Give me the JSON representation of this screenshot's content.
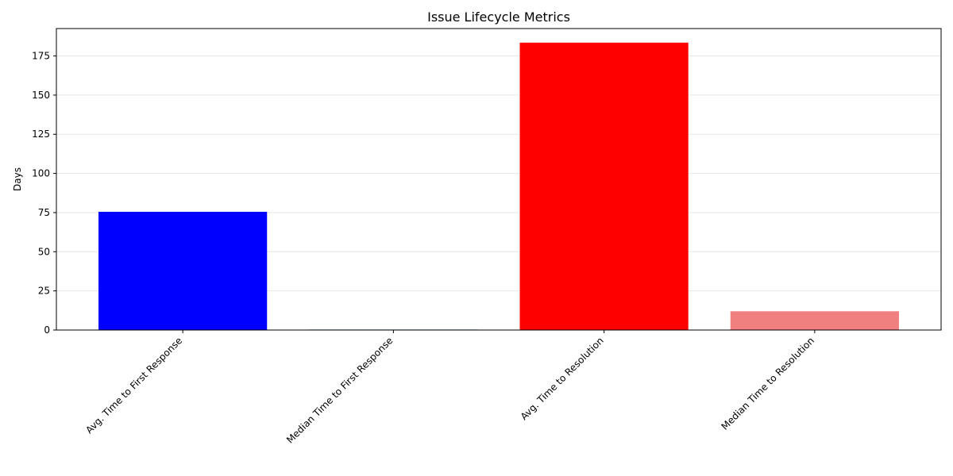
{
  "chart_data": {
    "type": "bar",
    "title": "Issue Lifecycle Metrics",
    "xlabel": "",
    "ylabel": "Days",
    "categories": [
      "Avg. Time to First Response",
      "Median Time to First Response",
      "Avg. Time to Resolution",
      "Median Time to Resolution"
    ],
    "values": [
      75.5,
      0.3,
      183.5,
      12.0
    ],
    "colors": [
      "#0000ff",
      "#1f77b4",
      "#ff0000",
      "#f08080"
    ],
    "ylim": [
      0,
      192.5
    ],
    "yticks": [
      0,
      25,
      50,
      75,
      100,
      125,
      150,
      175
    ],
    "grid": "y",
    "legend": "none"
  }
}
